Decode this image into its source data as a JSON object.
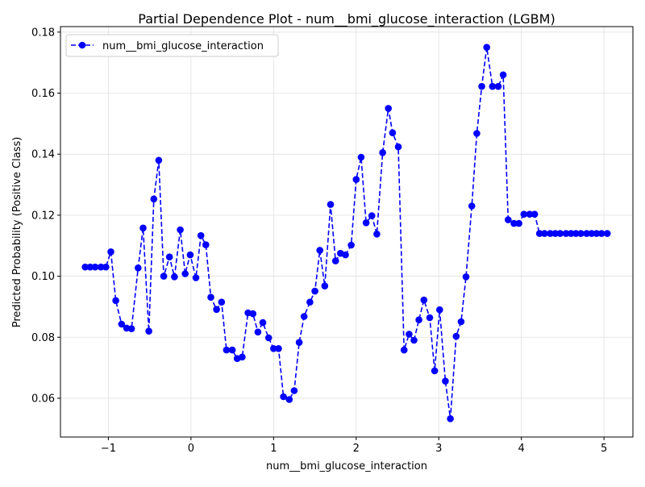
{
  "chart_data": {
    "type": "line",
    "title": "Partial Dependence Plot - num__bmi_glucose_interaction (LGBM)",
    "xlabel": "num__bmi_glucose_interaction",
    "ylabel": "Predicted Probability (Positive Class)",
    "xlim": [
      -1.58,
      5.35
    ],
    "ylim": [
      0.0473,
      0.1818
    ],
    "x_ticks": [
      -1,
      0,
      1,
      2,
      3,
      4,
      5
    ],
    "x_tick_labels": [
      "−1",
      "0",
      "1",
      "2",
      "3",
      "4",
      "5"
    ],
    "y_ticks": [
      0.06,
      0.08,
      0.1,
      0.12,
      0.14,
      0.16,
      0.18
    ],
    "y_tick_labels": [
      "0.06",
      "0.08",
      "0.10",
      "0.12",
      "0.14",
      "0.16",
      "0.18"
    ],
    "grid": true,
    "legend_position": "top-left",
    "colors": {
      "series": "#0000ff",
      "grid": "#e0e0e0",
      "axes": "#000000"
    },
    "series": [
      {
        "name": "num__bmi_glucose_interaction",
        "line_style": "dashed",
        "marker": "circle",
        "x": [
          -1.28,
          -1.22,
          -1.16,
          -1.09,
          -1.03,
          -0.97,
          -0.91,
          -0.84,
          -0.78,
          -0.72,
          -0.64,
          -0.58,
          -0.51,
          -0.45,
          -0.39,
          -0.33,
          -0.26,
          -0.2,
          -0.13,
          -0.07,
          -0.01,
          0.06,
          0.12,
          0.18,
          0.24,
          0.31,
          0.37,
          0.43,
          0.5,
          0.56,
          0.62,
          0.69,
          0.75,
          0.81,
          0.87,
          0.94,
          1.0,
          1.06,
          1.12,
          1.19,
          1.25,
          1.31,
          1.37,
          1.44,
          1.5,
          1.56,
          1.62,
          1.69,
          1.75,
          1.81,
          1.87,
          1.94,
          2.0,
          2.06,
          2.12,
          2.19,
          2.25,
          2.32,
          2.39,
          2.44,
          2.51,
          2.58,
          2.64,
          2.7,
          2.76,
          2.82,
          2.89,
          2.95,
          3.01,
          3.08,
          3.14,
          3.21,
          3.27,
          3.33,
          3.4,
          3.46,
          3.52,
          3.58,
          3.65,
          3.72,
          3.78,
          3.84,
          3.91,
          3.97,
          4.03,
          4.1,
          4.16,
          4.22,
          4.28,
          4.35,
          4.41,
          4.47,
          4.54,
          4.6,
          4.66,
          4.72,
          4.79,
          4.85,
          4.91,
          4.97,
          5.04
        ],
        "y": [
          0.103,
          0.103,
          0.103,
          0.103,
          0.103,
          0.108,
          0.092,
          0.0843,
          0.083,
          0.0828,
          0.1027,
          0.1158,
          0.082,
          0.1253,
          0.138,
          0.1,
          0.1063,
          0.0998,
          0.1152,
          0.1008,
          0.107,
          0.0995,
          0.1133,
          0.1103,
          0.0931,
          0.0891,
          0.0915,
          0.0758,
          0.0758,
          0.073,
          0.0735,
          0.088,
          0.0877,
          0.0817,
          0.0848,
          0.0798,
          0.0763,
          0.0763,
          0.0605,
          0.0596,
          0.0625,
          0.0783,
          0.0868,
          0.0915,
          0.0951,
          0.1085,
          0.0968,
          0.1235,
          0.105,
          0.1075,
          0.107,
          0.1102,
          0.1317,
          0.139,
          0.1175,
          0.1198,
          0.1138,
          0.1405,
          0.155,
          0.147,
          0.1424,
          0.0758,
          0.081,
          0.079,
          0.0857,
          0.0922,
          0.0864,
          0.069,
          0.089,
          0.0656,
          0.0533,
          0.0803,
          0.0851,
          0.0998,
          0.123,
          0.1468,
          0.1622,
          0.175,
          0.1622,
          0.1622,
          0.166,
          0.1185,
          0.1173,
          0.1173,
          0.1203,
          0.1203,
          0.1203,
          0.114,
          0.114,
          0.114,
          0.114,
          0.114,
          0.114,
          0.114,
          0.114,
          0.114,
          0.114,
          0.114,
          0.114,
          0.114,
          0.114
        ]
      }
    ]
  }
}
